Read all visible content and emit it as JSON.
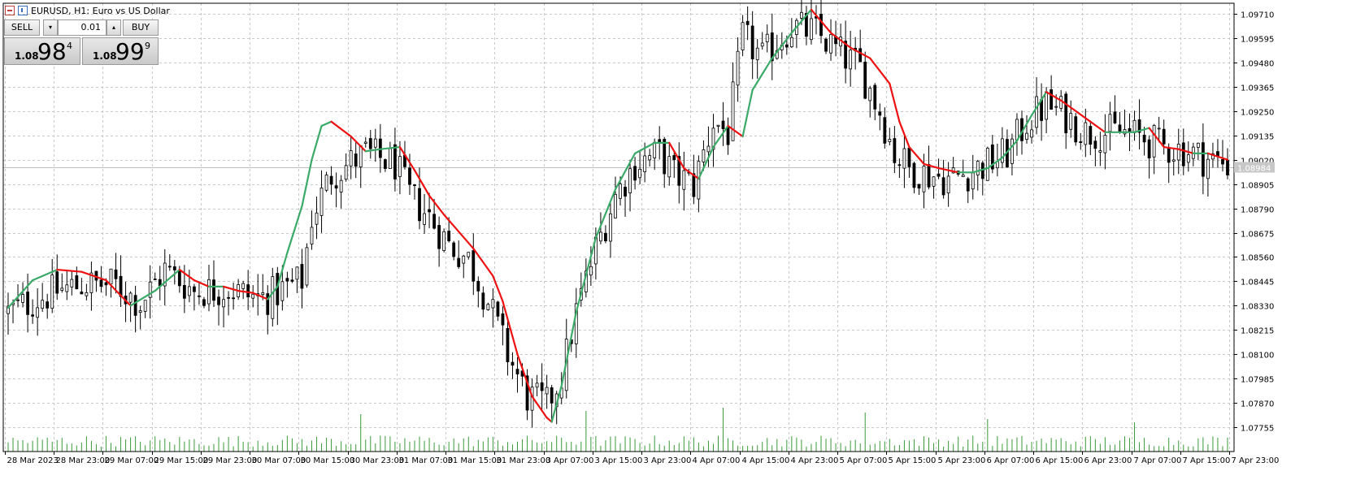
{
  "header": {
    "symbol_title": "EURUSD, H1:  Euro vs US Dollar"
  },
  "trade_panel": {
    "sell_label": "SELL",
    "buy_label": "BUY",
    "volume": "0.01",
    "down_arrow": "▾",
    "up_arrow": "▴",
    "bid": {
      "prefix": "1.08",
      "big": "98",
      "sup": "4"
    },
    "ask": {
      "prefix": "1.08",
      "big": "99",
      "sup": "9"
    }
  },
  "chart_data": {
    "type": "candlestick",
    "price_labels": [
      "1.09710",
      "1.09595",
      "1.09480",
      "1.09365",
      "1.09250",
      "1.09135",
      "1.09020",
      "1.08905",
      "1.08790",
      "1.08675",
      "1.08560",
      "1.08445",
      "1.08330",
      "1.08215",
      "1.08100",
      "1.07985",
      "1.07870",
      "1.07755"
    ],
    "current_price_label": "1.08984",
    "current_price": 1.08984,
    "ylim": [
      1.0764,
      1.0976
    ],
    "time_labels": [
      "28 Mar 2023",
      "28 Mar 23:00",
      "29 Mar 07:00",
      "29 Mar 15:00",
      "29 Mar 23:00",
      "30 Mar 07:00",
      "30 Mar 15:00",
      "30 Mar 23:00",
      "31 Mar 07:00",
      "31 Mar 15:00",
      "31 Mar 23:00",
      "3 Apr 07:00",
      "3 Apr 15:00",
      "3 Apr 23:00",
      "4 Apr 07:00",
      "4 Apr 15:00",
      "4 Apr 23:00",
      "5 Apr 07:00",
      "5 Apr 15:00",
      "5 Apr 23:00",
      "6 Apr 07:00",
      "6 Apr 15:00",
      "6 Apr 23:00",
      "7 Apr 07:00",
      "7 Apr 15:00",
      "7 Apr 23:00"
    ],
    "bar_count": 250,
    "close_path": [
      [
        0,
        1.083
      ],
      [
        10,
        1.084
      ],
      [
        15,
        1.0843
      ],
      [
        22,
        1.0843
      ],
      [
        27,
        1.0834
      ],
      [
        32,
        1.085
      ],
      [
        38,
        1.084
      ],
      [
        45,
        1.0841
      ],
      [
        50,
        1.0837
      ],
      [
        53,
        1.0837
      ],
      [
        60,
        1.0845
      ],
      [
        62,
        1.0875
      ],
      [
        66,
        1.0895
      ],
      [
        73,
        1.0905
      ],
      [
        79,
        1.09
      ],
      [
        82,
        1.0885
      ],
      [
        86,
        1.0875
      ],
      [
        90,
        1.0862
      ],
      [
        94,
        1.0855
      ],
      [
        98,
        1.0835
      ],
      [
        102,
        1.081
      ],
      [
        106,
        1.079
      ],
      [
        110,
        1.0786
      ],
      [
        113,
        1.08
      ],
      [
        116,
        1.083
      ],
      [
        120,
        1.086
      ],
      [
        124,
        1.0885
      ],
      [
        128,
        1.09
      ],
      [
        133,
        1.0905
      ],
      [
        136,
        1.0895
      ],
      [
        140,
        1.089
      ],
      [
        144,
        1.092
      ],
      [
        147,
        1.0915
      ],
      [
        150,
        1.096
      ],
      [
        154,
        1.095
      ],
      [
        157,
        1.0958
      ],
      [
        160,
        1.0965
      ],
      [
        165,
        1.0962
      ],
      [
        170,
        1.0952
      ],
      [
        174,
        1.0945
      ],
      [
        178,
        1.0925
      ],
      [
        181,
        1.0905
      ],
      [
        184,
        1.0898
      ],
      [
        188,
        1.0895
      ],
      [
        192,
        1.0893
      ],
      [
        196,
        1.0896
      ],
      [
        200,
        1.09
      ],
      [
        204,
        1.0905
      ],
      [
        208,
        1.092
      ],
      [
        212,
        1.0928
      ],
      [
        216,
        1.0923
      ],
      [
        220,
        1.0915
      ],
      [
        228,
        1.0915
      ],
      [
        232,
        1.0912
      ],
      [
        236,
        1.0908
      ],
      [
        240,
        1.0907
      ],
      [
        244,
        1.0903
      ],
      [
        249,
        1.09
      ]
    ],
    "ma_points": [
      [
        0,
        1.0832
      ],
      [
        5,
        1.0845
      ],
      [
        10,
        1.085
      ],
      [
        15,
        1.0849
      ],
      [
        20,
        1.0845
      ],
      [
        25,
        1.0833
      ],
      [
        30,
        1.084
      ],
      [
        35,
        1.085
      ],
      [
        38,
        1.0845
      ],
      [
        41,
        1.0842
      ],
      [
        44,
        1.0842
      ],
      [
        47,
        1.084
      ],
      [
        50,
        1.0839
      ],
      [
        53,
        1.0836
      ],
      [
        55,
        1.0842
      ],
      [
        57,
        1.0858
      ],
      [
        60,
        1.088
      ],
      [
        62,
        1.0902
      ],
      [
        64,
        1.0918
      ],
      [
        66,
        1.092
      ],
      [
        70,
        1.0913
      ],
      [
        73,
        1.0906
      ],
      [
        76,
        1.0907
      ],
      [
        80,
        1.0908
      ],
      [
        83,
        1.0897
      ],
      [
        86,
        1.0885
      ],
      [
        89,
        1.0876
      ],
      [
        92,
        1.0868
      ],
      [
        95,
        1.086
      ],
      [
        99,
        1.0847
      ],
      [
        101,
        1.0835
      ],
      [
        104,
        1.081
      ],
      [
        107,
        1.079
      ],
      [
        110,
        1.078
      ],
      [
        111,
        1.0778
      ],
      [
        113,
        1.0795
      ],
      [
        116,
        1.083
      ],
      [
        120,
        1.0865
      ],
      [
        124,
        1.0888
      ],
      [
        128,
        1.0905
      ],
      [
        132,
        1.091
      ],
      [
        135,
        1.091
      ],
      [
        138,
        1.0898
      ],
      [
        141,
        1.0893
      ],
      [
        144,
        1.0908
      ],
      [
        147,
        1.0918
      ],
      [
        150,
        1.0913
      ],
      [
        152,
        1.0935
      ],
      [
        156,
        1.095
      ],
      [
        160,
        1.0962
      ],
      [
        164,
        1.0973
      ],
      [
        168,
        1.0962
      ],
      [
        172,
        1.0955
      ],
      [
        176,
        1.095
      ],
      [
        180,
        1.0938
      ],
      [
        182,
        1.092
      ],
      [
        184,
        1.0908
      ],
      [
        187,
        1.09
      ],
      [
        190,
        1.0898
      ],
      [
        194,
        1.0896
      ],
      [
        197,
        1.0896
      ],
      [
        200,
        1.0898
      ],
      [
        203,
        1.0903
      ],
      [
        206,
        1.0911
      ],
      [
        209,
        1.0923
      ],
      [
        212,
        1.0934
      ],
      [
        215,
        1.093
      ],
      [
        218,
        1.0925
      ],
      [
        221,
        1.092
      ],
      [
        224,
        1.0915
      ],
      [
        227,
        1.0915
      ],
      [
        230,
        1.0915
      ],
      [
        233,
        1.0917
      ],
      [
        236,
        1.0908
      ],
      [
        239,
        1.0907
      ],
      [
        242,
        1.0905
      ],
      [
        245,
        1.0905
      ],
      [
        249,
        1.0902
      ]
    ],
    "volume_spikes": [
      [
        72,
        1.4
      ],
      [
        118,
        1.6
      ],
      [
        146,
        1.8
      ],
      [
        175,
        1.5
      ],
      [
        200,
        1.1
      ],
      [
        230,
        0.9
      ]
    ],
    "colors": {
      "grid": "#c8c8c8",
      "candle": "#000000",
      "ma_up": "#3aaa68",
      "ma_down": "#ee1111",
      "volume": "#3a9a3a",
      "current_line": "#c0c0c0"
    },
    "grid": true
  }
}
